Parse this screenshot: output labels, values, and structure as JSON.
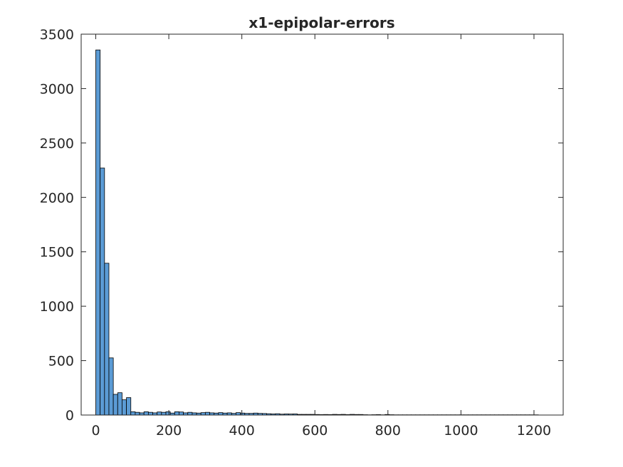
{
  "chart_data": {
    "type": "bar",
    "title": "x1-epipolar-errors",
    "xlabel": "",
    "ylabel": "",
    "xlim": [
      -40,
      1280
    ],
    "ylim": [
      0,
      3500
    ],
    "bin_width": 12,
    "bin_start": 0,
    "values": [
      3355,
      2270,
      1395,
      525,
      190,
      205,
      140,
      160,
      30,
      25,
      20,
      30,
      25,
      20,
      28,
      25,
      30,
      18,
      30,
      28,
      20,
      25,
      20,
      18,
      22,
      25,
      20,
      18,
      22,
      18,
      20,
      15,
      22,
      18,
      15,
      15,
      18,
      15,
      14,
      12,
      10,
      12,
      8,
      10,
      9,
      10,
      6,
      6,
      6,
      6,
      5,
      4,
      5,
      4,
      6,
      5,
      6,
      4,
      6,
      5,
      5,
      3,
      2,
      3,
      4,
      2,
      5,
      3,
      2,
      2,
      2,
      2,
      2,
      2,
      2,
      2,
      2,
      2,
      2,
      2,
      2,
      2,
      2,
      2,
      2,
      2,
      2,
      2,
      2,
      2,
      2,
      2,
      2,
      2,
      2,
      2,
      2,
      2,
      2,
      2,
      2
    ],
    "bar_color": "#5b9bd5",
    "xticks": [
      0,
      200,
      400,
      600,
      800,
      1000,
      1200
    ],
    "yticks": [
      0,
      500,
      1000,
      1500,
      2000,
      2500,
      3000,
      3500
    ],
    "xtick_labels": [
      "0",
      "200",
      "400",
      "600",
      "800",
      "1000",
      "1200"
    ],
    "ytick_labels": [
      "0",
      "500",
      "1000",
      "1500",
      "2000",
      "2500",
      "3000",
      "3500"
    ],
    "grid": false,
    "legend": "none"
  }
}
